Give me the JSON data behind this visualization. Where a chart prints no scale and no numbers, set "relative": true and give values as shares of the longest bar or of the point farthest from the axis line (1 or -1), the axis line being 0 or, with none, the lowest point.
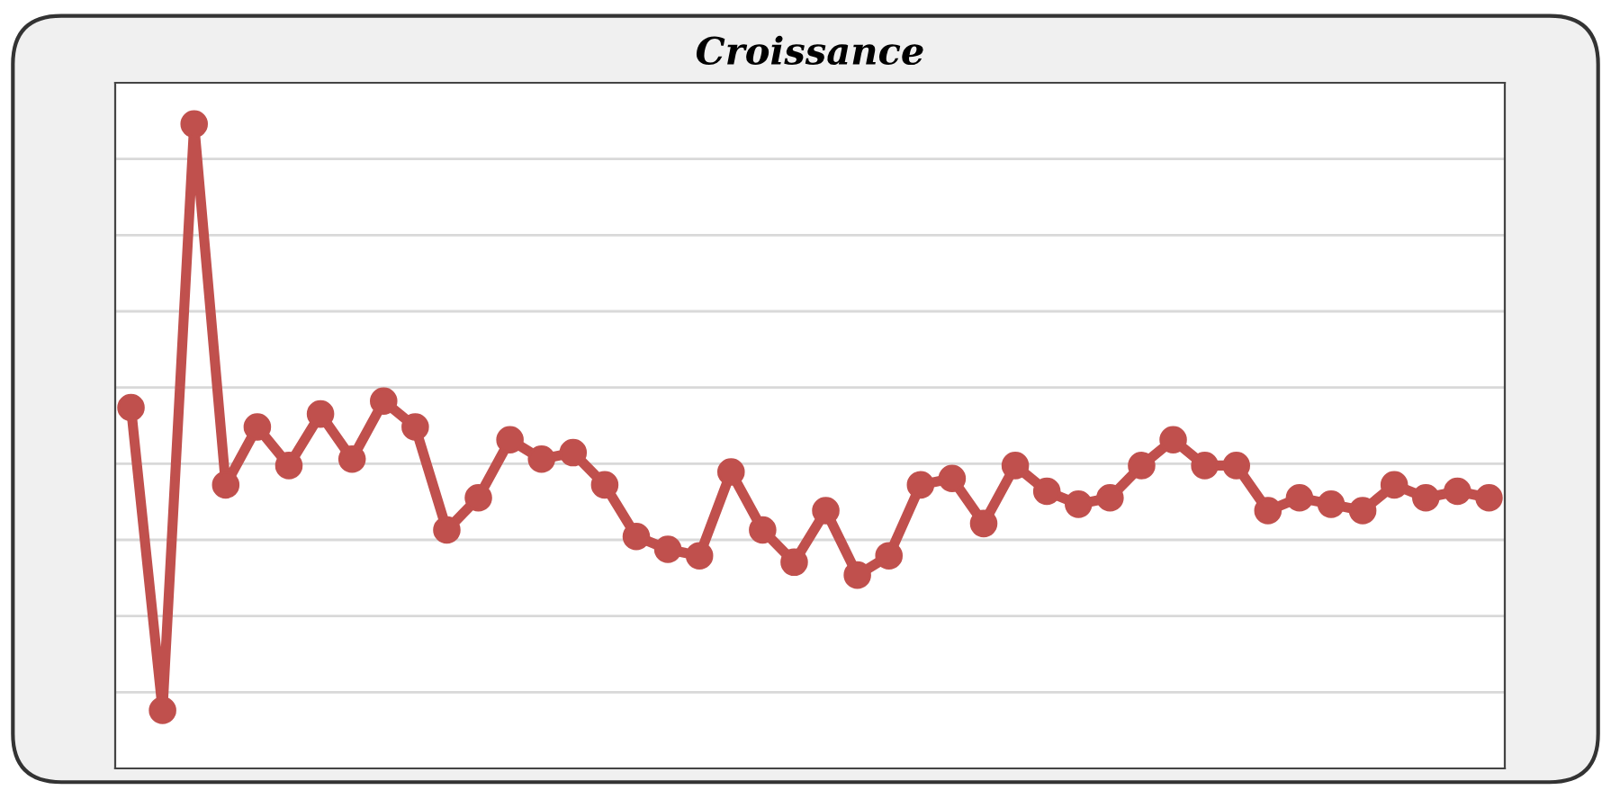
{
  "chart_data": {
    "type": "line",
    "title": "Croissance",
    "relative": true,
    "grid": "y",
    "marker": "circle",
    "line_style": "solid",
    "categories": [
      null,
      null,
      null,
      null,
      null,
      null,
      null,
      null,
      null,
      null,
      null,
      null,
      null,
      null,
      null,
      null,
      null,
      null,
      null,
      null,
      null,
      null,
      null,
      null,
      null,
      null,
      null,
      null,
      null,
      null,
      null,
      null,
      null,
      null,
      null,
      null,
      null,
      null,
      null,
      null,
      null,
      null,
      null,
      null
    ],
    "series": [
      {
        "color": "#c0504d",
        "values": [
          0.56,
          0.09,
          1.0,
          0.44,
          0.53,
          0.47,
          0.55,
          0.48,
          0.57,
          0.53,
          0.37,
          0.42,
          0.51,
          0.48,
          0.49,
          0.44,
          0.36,
          0.34,
          0.33,
          0.46,
          0.37,
          0.32,
          0.4,
          0.3,
          0.33,
          0.44,
          0.45,
          0.38,
          0.47,
          0.43,
          0.41,
          0.42,
          0.47,
          0.51,
          0.47,
          0.47,
          0.4,
          0.42,
          0.41,
          0.4,
          0.44,
          0.42,
          0.43,
          0.42
        ]
      }
    ]
  }
}
